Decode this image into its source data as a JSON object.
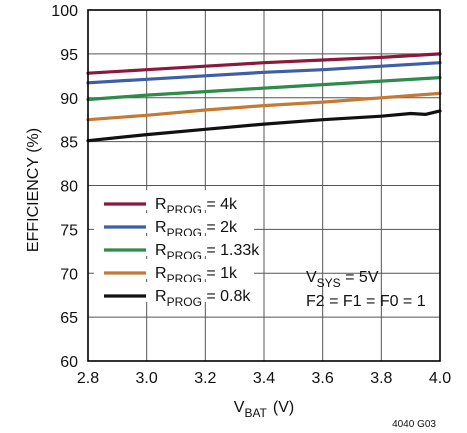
{
  "chart_data": {
    "type": "line",
    "xlabel": "V",
    "xlabel_sub": "BAT",
    "xlabel_unit": "(V)",
    "ylabel": "EFFICIENCY (%)",
    "xlim": [
      2.8,
      4.0
    ],
    "ylim": [
      60,
      100
    ],
    "xticks": [
      "2.8",
      "3.0",
      "3.2",
      "3.4",
      "3.6",
      "3.8",
      "4.0"
    ],
    "yticks": [
      "60",
      "65",
      "70",
      "75",
      "80",
      "85",
      "90",
      "95",
      "100"
    ],
    "grid": true,
    "legend_position": "bottom-left",
    "series": [
      {
        "name": "R",
        "name_sub": "PROG",
        "name_value": " = 4k",
        "color": "#8b1a3a",
        "x": [
          2.8,
          3.0,
          3.2,
          3.4,
          3.6,
          3.8,
          4.0
        ],
        "y": [
          92.8,
          93.2,
          93.6,
          94.0,
          94.3,
          94.6,
          95.0
        ]
      },
      {
        "name": "R",
        "name_sub": "PROG",
        "name_value": " = 2k",
        "color": "#3f5ea8",
        "x": [
          2.8,
          3.0,
          3.2,
          3.4,
          3.6,
          3.8,
          4.0
        ],
        "y": [
          91.7,
          92.1,
          92.5,
          92.9,
          93.2,
          93.6,
          94.0
        ]
      },
      {
        "name": "R",
        "name_sub": "PROG",
        "name_value": " = 1.33k",
        "color": "#2e8b4a",
        "x": [
          2.8,
          3.0,
          3.2,
          3.4,
          3.6,
          3.8,
          4.0
        ],
        "y": [
          89.8,
          90.3,
          90.7,
          91.1,
          91.5,
          91.9,
          92.3
        ]
      },
      {
        "name": "R",
        "name_sub": "PROG",
        "name_value": " = 1k",
        "color": "#c47a35",
        "x": [
          2.8,
          3.0,
          3.2,
          3.4,
          3.6,
          3.8,
          4.0
        ],
        "y": [
          87.5,
          88.0,
          88.6,
          89.1,
          89.5,
          90.0,
          90.5
        ]
      },
      {
        "name": "R",
        "name_sub": "PROG",
        "name_value": " = 0.8k",
        "color": "#111111",
        "x": [
          2.8,
          3.0,
          3.2,
          3.4,
          3.6,
          3.8,
          3.9,
          3.95,
          4.0
        ],
        "y": [
          85.1,
          85.8,
          86.4,
          87.0,
          87.5,
          87.9,
          88.2,
          88.1,
          88.5
        ]
      }
    ],
    "annotations": [
      {
        "text": "V",
        "sub": "SYS",
        "rest": " = 5V"
      },
      {
        "text": "F2 = F1 = F0 = 1"
      }
    ],
    "figure_id": "4040 G03"
  }
}
